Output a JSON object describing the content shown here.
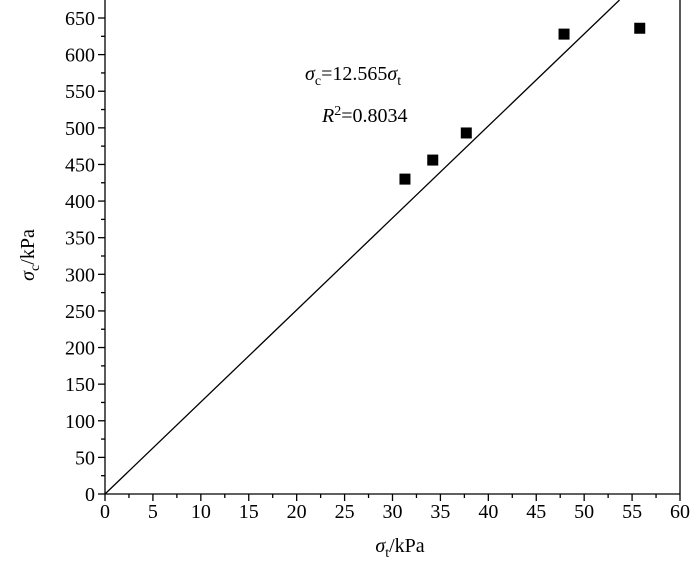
{
  "chart_data": {
    "type": "scatter",
    "xlabel": [
      {
        "text": "σ",
        "style": "italic"
      },
      {
        "text": "t",
        "style": "sub"
      },
      {
        "text": "/kPa",
        "style": "normal"
      }
    ],
    "ylabel": [
      {
        "text": "σ",
        "style": "italic"
      },
      {
        "text": "c",
        "style": "sub"
      },
      {
        "text": "/kPa",
        "style": "normal"
      }
    ],
    "x": [
      31.3,
      34.2,
      37.7,
      47.9,
      55.8
    ],
    "values": [
      430,
      456,
      493,
      628,
      636
    ],
    "color": "#000000",
    "fit": {
      "slope": 12.565
    },
    "annotations": [
      [
        {
          "text": "σ",
          "style": "italic"
        },
        {
          "text": "c",
          "style": "sub"
        },
        {
          "text": "=12.565",
          "style": "normal"
        },
        {
          "text": "σ",
          "style": "italic"
        },
        {
          "text": "t",
          "style": "sub"
        }
      ],
      [
        {
          "text": "R",
          "style": "italic"
        },
        {
          "text": "2",
          "style": "sup"
        },
        {
          "text": "=0.8034",
          "style": "normal"
        }
      ]
    ],
    "xlim": [
      0,
      60
    ],
    "xticks": [
      0,
      5,
      10,
      15,
      20,
      25,
      30,
      35,
      40,
      45,
      50,
      55,
      60
    ],
    "ylim": [
      0,
      650
    ],
    "yticks": [
      0,
      50,
      100,
      150,
      200,
      250,
      300,
      350,
      400,
      450,
      500,
      550,
      600,
      650
    ]
  }
}
